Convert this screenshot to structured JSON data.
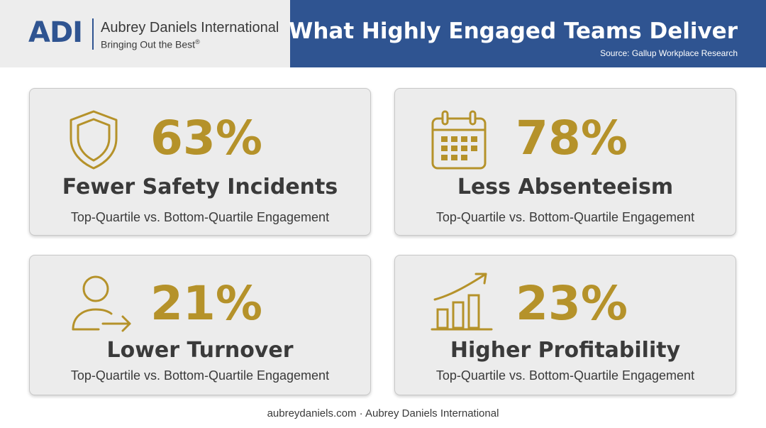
{
  "header": {
    "logo_mark": "ADI",
    "company_name": "Aubrey Daniels International",
    "tagline": "Bringing Out the Best",
    "tagline_mark": "®",
    "title": "What Highly Engaged Teams Deliver",
    "source": "Source: Gallup Workplace Research"
  },
  "cards": [
    {
      "icon": "shield-icon",
      "value": "63%",
      "label": "Fewer Safety Incidents",
      "sub": "Top-Quartile vs. Bottom-Quartile Engagement"
    },
    {
      "icon": "calendar-icon",
      "value": "78%",
      "label": "Less Absenteeism",
      "sub": "Top-Quartile vs. Bottom-Quartile Engagement"
    },
    {
      "icon": "person-leaving-icon",
      "value": "21%",
      "label": "Lower Turnover",
      "sub": "Top-Quartile vs. Bottom-Quartile Engagement"
    },
    {
      "icon": "growth-chart-icon",
      "value": "23%",
      "label": "Higher Profitability",
      "sub": "Top-Quartile vs. Bottom-Quartile Engagement"
    }
  ],
  "footer": "aubreydaniels.com · Aubrey Daniels International",
  "colors": {
    "header_blue": "#2f5491",
    "header_gray": "#ededed",
    "accent_gold": "#b5922a",
    "card_bg": "#ececec",
    "text_dark": "#3a3a3a"
  }
}
